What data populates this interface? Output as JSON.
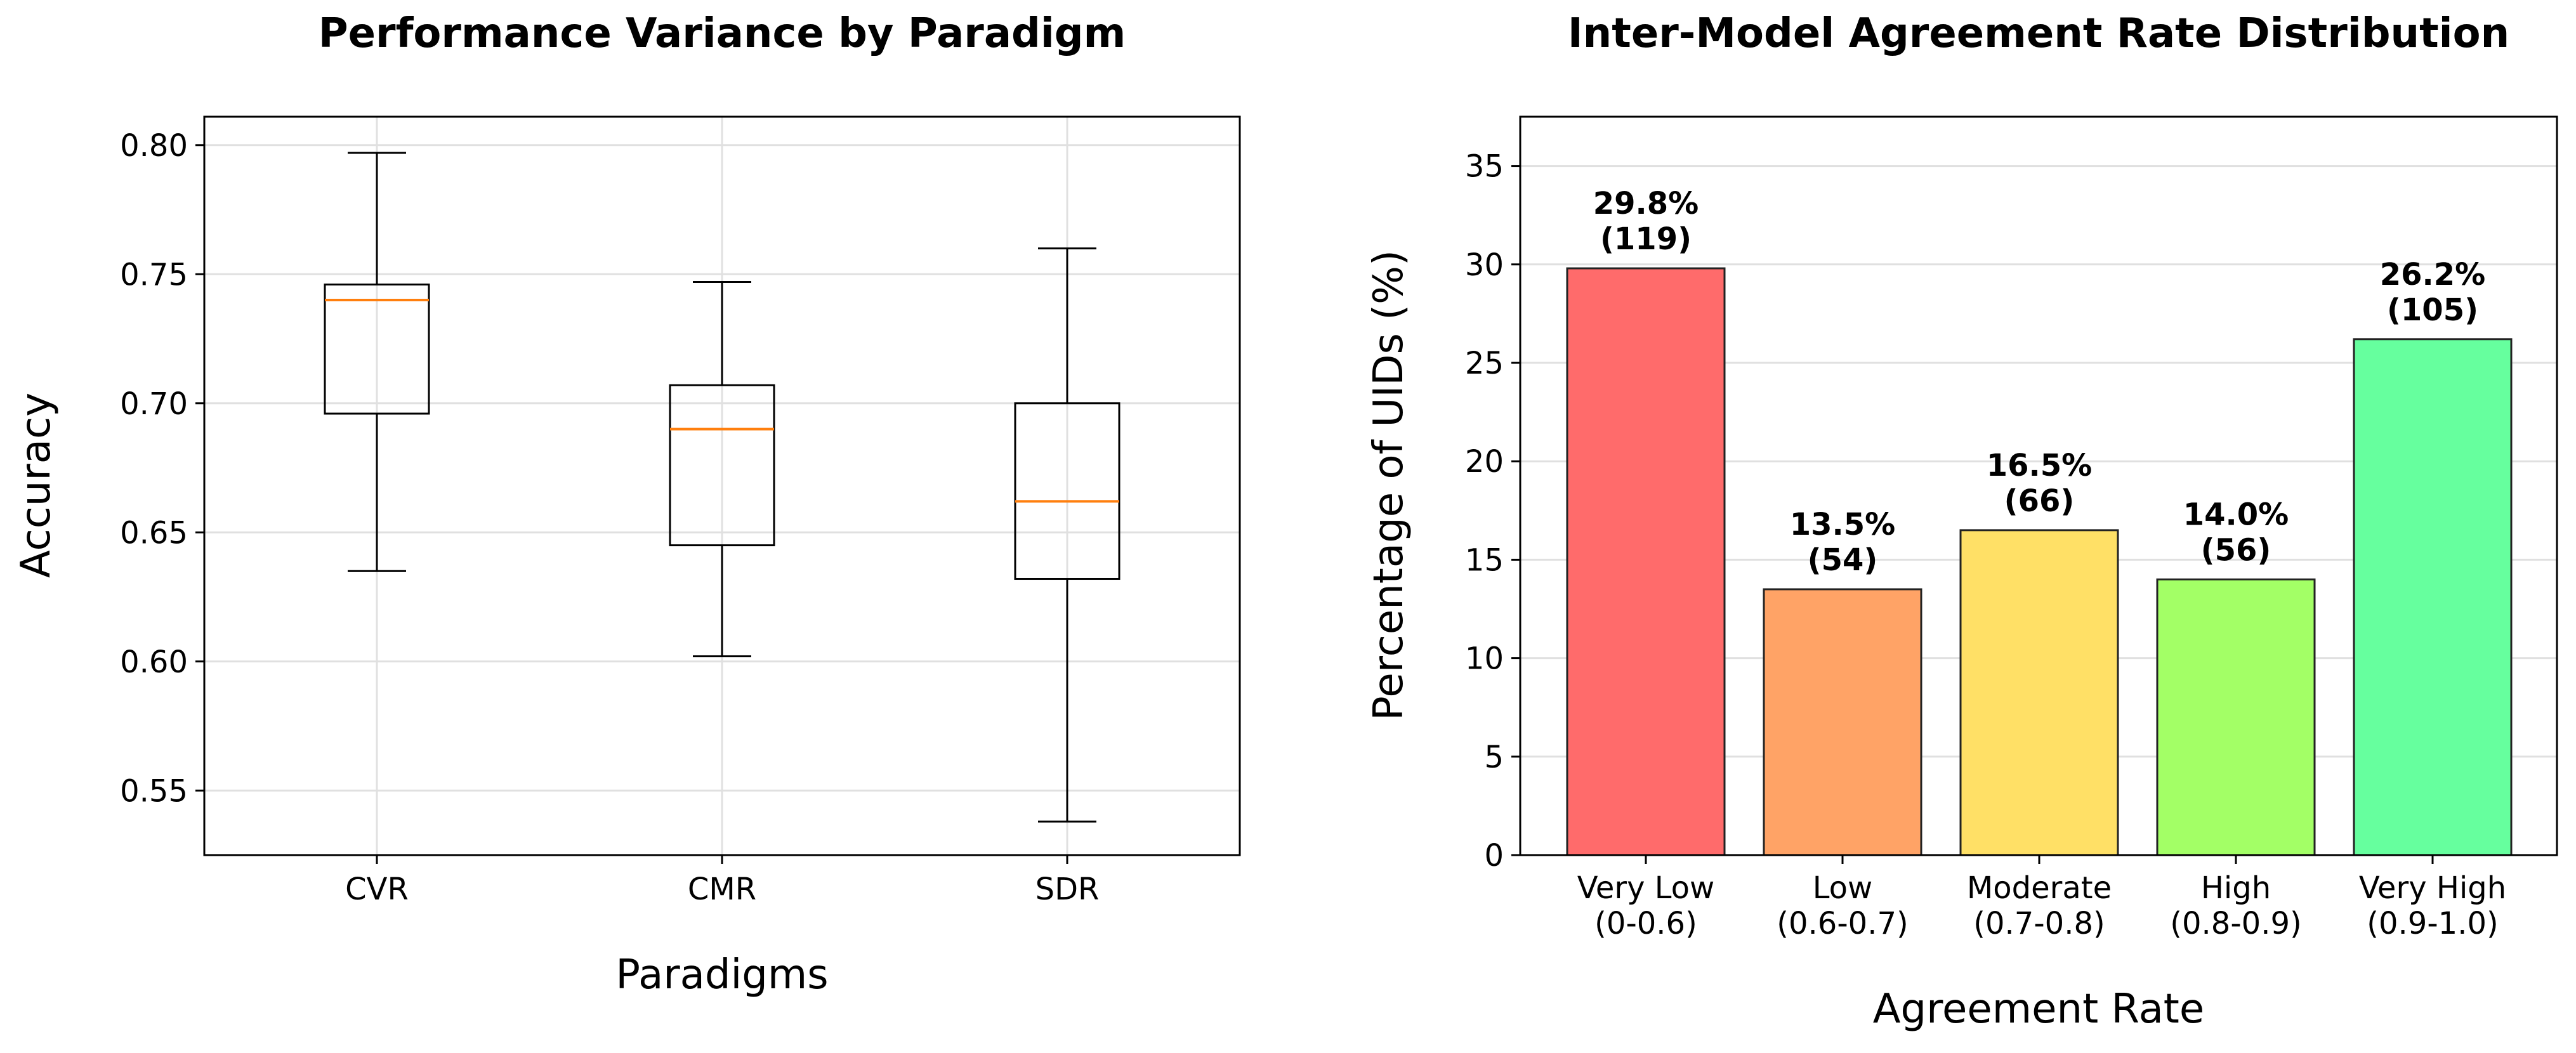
{
  "chart_data": [
    {
      "type": "boxplot",
      "title": "Performance Variance by Paradigm",
      "xlabel": "Paradigms",
      "ylabel": "Accuracy",
      "ylim": [
        0.525,
        0.811
      ],
      "yticks": [
        0.55,
        0.6,
        0.65,
        0.7,
        0.75,
        0.8
      ],
      "ytick_labels": [
        "0.55",
        "0.60",
        "0.65",
        "0.70",
        "0.75",
        "0.80"
      ],
      "grid": true,
      "categories": [
        "CVR",
        "CMR",
        "SDR"
      ],
      "boxes": [
        {
          "whisker_low": 0.635,
          "q1": 0.696,
          "median": 0.74,
          "q3": 0.746,
          "whisker_high": 0.797
        },
        {
          "whisker_low": 0.602,
          "q1": 0.645,
          "median": 0.69,
          "q3": 0.707,
          "whisker_high": 0.747
        },
        {
          "whisker_low": 0.538,
          "q1": 0.632,
          "median": 0.662,
          "q3": 0.7,
          "whisker_high": 0.76
        }
      ],
      "box_color": "#000000",
      "median_color": "#ff7f0e"
    },
    {
      "type": "bar",
      "title": "Inter-Model Agreement Rate Distribution",
      "xlabel": "Agreement Rate",
      "ylabel": "Percentage of UIDs (%)",
      "ylim": [
        0,
        37.5
      ],
      "yticks": [
        0,
        5,
        10,
        15,
        20,
        25,
        30,
        35
      ],
      "ytick_labels": [
        "0",
        "5",
        "10",
        "15",
        "20",
        "25",
        "30",
        "35"
      ],
      "grid": true,
      "categories": [
        [
          "Very Low",
          "(0-0.6)"
        ],
        [
          "Low",
          "(0.6-0.7)"
        ],
        [
          "Moderate",
          "(0.7-0.8)"
        ],
        [
          "High",
          "(0.8-0.9)"
        ],
        [
          "Very High",
          "(0.9-1.0)"
        ]
      ],
      "values": [
        29.8,
        13.5,
        16.5,
        14.0,
        26.2
      ],
      "data_labels": [
        [
          "29.8%",
          "(119)"
        ],
        [
          "13.5%",
          "(54)"
        ],
        [
          "16.5%",
          "(66)"
        ],
        [
          "14.0%",
          "(56)"
        ],
        [
          "26.2%",
          "(105)"
        ]
      ],
      "colors": [
        "#ff6b6b",
        "#ffa366",
        "#ffe066",
        "#a3ff66",
        "#66ff9e"
      ]
    }
  ]
}
